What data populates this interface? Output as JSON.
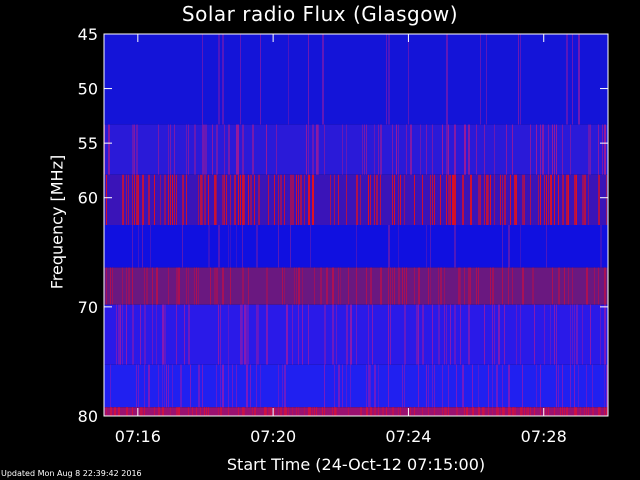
{
  "title": "Solar radio Flux (Glasgow)",
  "footer": "Updated Mon Aug  8 22:39:42 2016",
  "chart_data": {
    "type": "heatmap",
    "title": "Solar radio Flux (Glasgow)",
    "xlabel": "Start Time (24-Oct-12 07:15:00)",
    "ylabel": "Frequency [MHz]",
    "x_ticks": [
      {
        "minute": 1,
        "label": "07:16"
      },
      {
        "minute": 5,
        "label": "07:20"
      },
      {
        "minute": 9,
        "label": "07:24"
      },
      {
        "minute": 13,
        "label": "07:28"
      }
    ],
    "y_ticks": [
      {
        "mhz": 45,
        "label": "45"
      },
      {
        "mhz": 50,
        "label": "50"
      },
      {
        "mhz": 55,
        "label": "55"
      },
      {
        "mhz": 60,
        "label": "60"
      },
      {
        "mhz": 70,
        "label": "70"
      },
      {
        "mhz": 80,
        "label": "80"
      }
    ],
    "xlim_minutes": [
      0,
      14.9
    ],
    "ylim_mhz": [
      45,
      80
    ],
    "bands": [
      {
        "mhz_from": 45.0,
        "mhz_to": 53.3,
        "base_color": "#1414d8",
        "spike_color": "#7a1ab0",
        "spike_density": 0.1
      },
      {
        "mhz_from": 53.3,
        "mhz_to": 57.9,
        "base_color": "#2a1ad8",
        "spike_color": "#9a1a9a",
        "spike_density": 0.35
      },
      {
        "mhz_from": 57.9,
        "mhz_to": 62.5,
        "base_color": "#3a14b8",
        "spike_color": "#e01020",
        "spike_density": 0.45
      },
      {
        "mhz_from": 62.5,
        "mhz_to": 66.4,
        "base_color": "#1010e0",
        "spike_color": "#5a1ab8",
        "spike_density": 0.1
      },
      {
        "mhz_from": 66.4,
        "mhz_to": 69.8,
        "base_color": "#6a1880",
        "spike_color": "#b01050",
        "spike_density": 0.3
      },
      {
        "mhz_from": 69.8,
        "mhz_to": 75.3,
        "base_color": "#2a1ae8",
        "spike_color": "#8a1ab0",
        "spike_density": 0.3
      },
      {
        "mhz_from": 75.3,
        "mhz_to": 79.2,
        "base_color": "#2020f0",
        "spike_color": "#7a1ac0",
        "spike_density": 0.3
      },
      {
        "mhz_from": 79.2,
        "mhz_to": 80.0,
        "base_color": "#9a1070",
        "spike_color": "#d01040",
        "spike_density": 0.5
      }
    ],
    "colors": {
      "axis": "#ffffff",
      "background": "#000000"
    }
  }
}
